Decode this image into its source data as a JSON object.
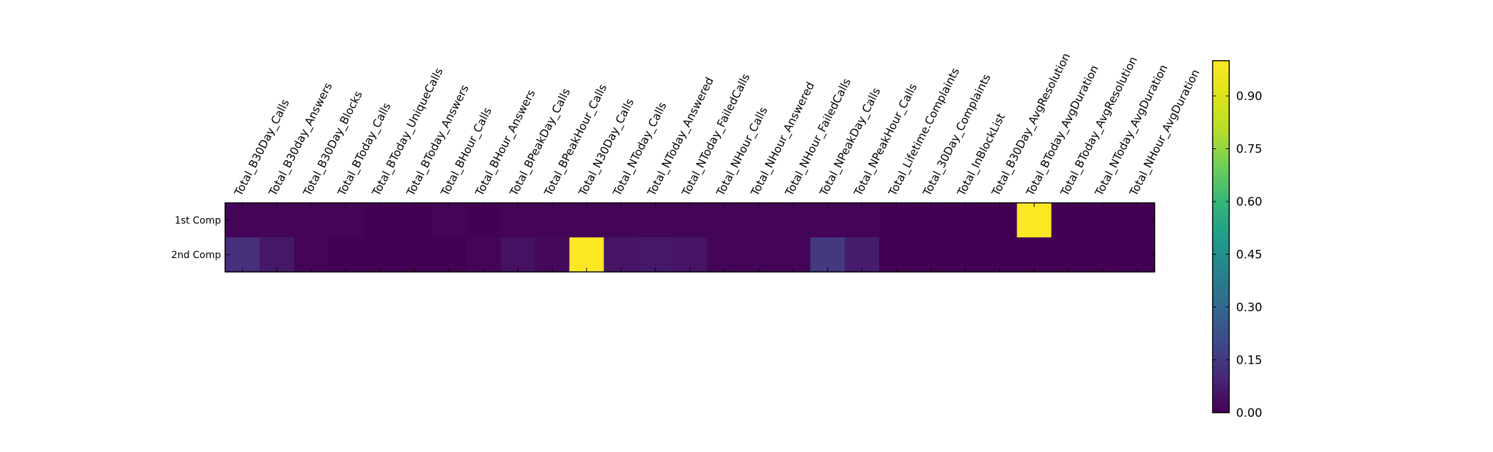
{
  "chart_data": {
    "type": "heatmap",
    "title": "",
    "xlabel": "",
    "ylabel": "",
    "x_categories": [
      "Total_B30Day_Calls",
      "Total_B30day_Answers",
      "Total_B30Day_Blocks",
      "Total_BToday_Calls",
      "Total_BToday_UniqueCalls",
      "Total_BToday_Answers",
      "Total_BHour_Calls",
      "Total_BHour_Answers",
      "Total_BPeakDay_Calls",
      "Total_BPeakHour_Calls",
      "Total_N30Day_Calls",
      "Total_NToday_Calls",
      "Total_NToday_Answered",
      "Total_NToday_FailedCalls",
      "Total_NHour_Calls",
      "Total_NHour_Answered",
      "Total_NHour_FailedCalls",
      "Total_NPeakDay_Calls",
      "Total_NPeakHour_Calls",
      "Total_Lifetime.Complaints",
      "Total_30Day_Complaints",
      "Total_InBlockList",
      "Total_B30Day_AvgResolution",
      "Total_BToday_AvgDuration",
      "Total_BToday_AvgResolution",
      "Total_NToday_AvgDuration",
      "Total_NHour_AvgDuration"
    ],
    "y_categories": [
      "1st Comp",
      "2nd Comp"
    ],
    "values": [
      [
        0.01,
        0.01,
        0.01,
        0.01,
        0.0,
        0.0,
        0.01,
        0.0,
        0.01,
        0.01,
        0.01,
        0.01,
        0.01,
        0.01,
        0.01,
        0.01,
        0.01,
        0.01,
        0.01,
        0.0,
        0.0,
        0.0,
        0.0,
        1.0,
        0.0,
        0.0,
        0.0
      ],
      [
        0.12,
        0.06,
        0.01,
        0.0,
        0.0,
        0.0,
        0.0,
        0.01,
        0.04,
        0.02,
        1.0,
        0.05,
        0.06,
        0.05,
        0.01,
        0.01,
        0.01,
        0.15,
        0.07,
        0.0,
        0.0,
        0.0,
        0.0,
        0.0,
        0.0,
        0.0,
        0.0
      ]
    ],
    "colorbar": {
      "colormap": "viridis",
      "range": [
        0.0,
        1.0
      ],
      "ticks": [
        "0.00",
        "0.15",
        "0.30",
        "0.45",
        "0.60",
        "0.75",
        "0.90"
      ]
    }
  }
}
